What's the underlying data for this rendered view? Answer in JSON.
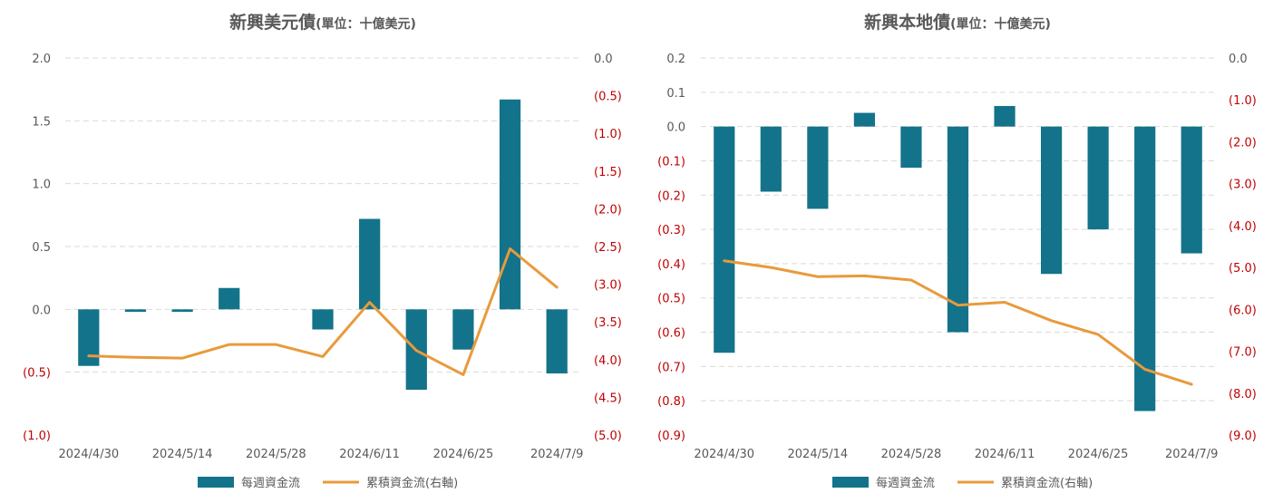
{
  "colors": {
    "bar": "#13738a",
    "line": "#e89a3c",
    "negative": "#c00000",
    "text": "#595959",
    "grid": "#d9d9d9"
  },
  "chart_data": [
    {
      "type": "bar",
      "title": "新興美元債",
      "title_unit": "(單位：十億美元)",
      "x_tick_labels": [
        "2024/4/30",
        "2024/5/14",
        "2024/5/28",
        "2024/6/11",
        "2024/6/25",
        "2024/7/9"
      ],
      "categories": [
        "2024/4/30",
        "2024/5/7",
        "2024/5/14",
        "2024/5/21",
        "2024/5/28",
        "2024/6/4",
        "2024/6/11",
        "2024/6/18",
        "2024/6/25",
        "2024/7/2",
        "2024/7/9"
      ],
      "y_left": {
        "min": -1.0,
        "max": 2.0,
        "ticks": [
          2.0,
          1.5,
          1.0,
          0.5,
          0.0,
          -0.5,
          -1.0
        ],
        "labels": [
          "2.0",
          "1.5",
          "1.0",
          "0.5",
          "0.0",
          "(0.5)",
          "(1.0)"
        ]
      },
      "y_right": {
        "min": -5.0,
        "max": 0.0,
        "ticks": [
          0.0,
          -0.5,
          -1.0,
          -1.5,
          -2.0,
          -2.5,
          -3.0,
          -3.5,
          -4.0,
          -4.5,
          -5.0
        ],
        "labels": [
          "0.0",
          "(0.5)",
          "(1.0)",
          "(1.5)",
          "(2.0)",
          "(2.5)",
          "(3.0)",
          "(3.5)",
          "(4.0)",
          "(4.5)",
          "(5.0)"
        ]
      },
      "series": [
        {
          "name": "每週資金流",
          "type": "bar",
          "axis": "left",
          "values": [
            -0.45,
            -0.02,
            -0.02,
            0.17,
            0.0,
            -0.16,
            0.72,
            -0.64,
            -0.32,
            1.67,
            -0.51
          ]
        },
        {
          "name": "累積資金流(右軸)",
          "type": "line",
          "axis": "right",
          "values": [
            -3.95,
            -3.97,
            -3.98,
            -3.8,
            -3.8,
            -3.96,
            -3.24,
            -3.88,
            -4.2,
            -2.53,
            -3.04
          ]
        }
      ],
      "legend": "bottom"
    },
    {
      "type": "bar",
      "title": "新興本地債",
      "title_unit": "(單位：十億美元)",
      "x_tick_labels": [
        "2024/4/30",
        "2024/5/14",
        "2024/5/28",
        "2024/6/11",
        "2024/6/25",
        "2024/7/9"
      ],
      "categories": [
        "2024/4/30",
        "2024/5/7",
        "2024/5/14",
        "2024/5/21",
        "2024/5/28",
        "2024/6/4",
        "2024/6/11",
        "2024/6/18",
        "2024/6/25",
        "2024/7/2",
        "2024/7/9"
      ],
      "y_left": {
        "min": -0.9,
        "max": 0.2,
        "ticks": [
          0.2,
          0.1,
          0.0,
          -0.1,
          -0.2,
          -0.3,
          -0.4,
          -0.5,
          -0.6,
          -0.7,
          -0.8,
          -0.9
        ],
        "labels": [
          "0.2",
          "0.1",
          "0.0",
          "(0.1)",
          "(0.2)",
          "(0.3)",
          "(0.4)",
          "(0.5)",
          "(0.6)",
          "(0.7)",
          "(0.8)",
          "(0.9)"
        ]
      },
      "y_right": {
        "min": -9.0,
        "max": 0.0,
        "ticks": [
          0.0,
          -1.0,
          -2.0,
          -3.0,
          -4.0,
          -5.0,
          -6.0,
          -7.0,
          -8.0,
          -9.0
        ],
        "labels": [
          "0.0",
          "(1.0)",
          "(2.0)",
          "(3.0)",
          "(4.0)",
          "(5.0)",
          "(6.0)",
          "(7.0)",
          "(8.0)",
          "(9.0)"
        ]
      },
      "series": [
        {
          "name": "每週資金流",
          "type": "bar",
          "axis": "left",
          "values": [
            -0.66,
            -0.19,
            -0.24,
            0.04,
            -0.12,
            -0.6,
            0.06,
            -0.43,
            -0.3,
            -0.83,
            -0.37
          ]
        },
        {
          "name": "累積資金流(右軸)",
          "type": "line",
          "axis": "right",
          "values": [
            -4.84,
            -5.0,
            -5.22,
            -5.2,
            -5.3,
            -5.9,
            -5.83,
            -6.27,
            -6.6,
            -7.43,
            -7.79
          ]
        }
      ],
      "legend": "bottom"
    }
  ]
}
